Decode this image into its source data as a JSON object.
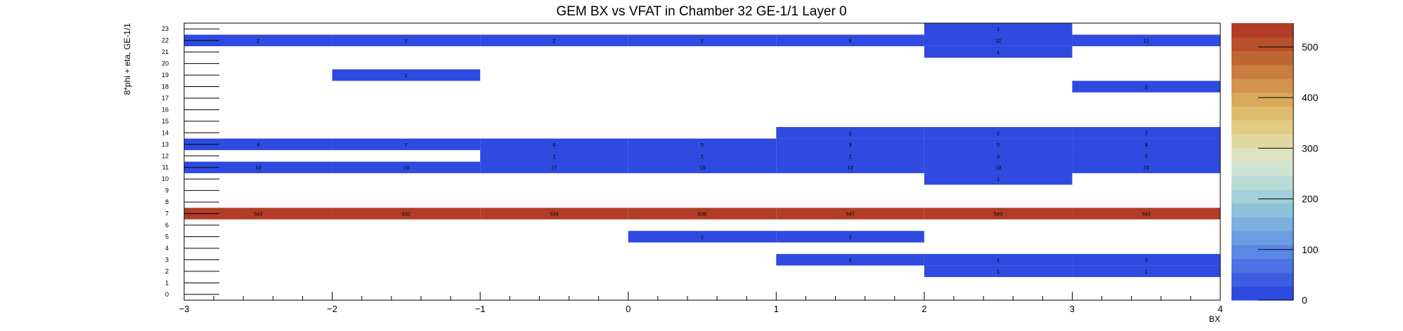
{
  "chart_data": {
    "type": "heatmap",
    "title": "GEM BX vs VFAT in Chamber 32 GE-1/1 Layer 0",
    "xlabel": "BX",
    "ylabel": "8*phi + eta, GE-1/1",
    "xlim": [
      -3,
      4
    ],
    "ylim": [
      -0.5,
      23.5
    ],
    "x_ticks": [
      "−3",
      "−2",
      "−1",
      "0",
      "1",
      "2",
      "3",
      "4"
    ],
    "y_ticks": [
      "0",
      "1",
      "2",
      "3",
      "4",
      "5",
      "6",
      "7",
      "8",
      "9",
      "10",
      "11",
      "12",
      "13",
      "14",
      "15",
      "16",
      "17",
      "18",
      "19",
      "20",
      "21",
      "22",
      "23"
    ],
    "x_bin_centers": [
      -2.5,
      -1.5,
      -0.5,
      0.5,
      1.5,
      2.5,
      3.5
    ],
    "zlim": [
      0,
      547
    ],
    "z_ticks": [
      0,
      100,
      200,
      300,
      400,
      500
    ],
    "colorscale": [
      "#2f4ae0",
      "#3d5ee2",
      "#4c72e3",
      "#5b88e4",
      "#6b9de2",
      "#7cb0dd",
      "#8ec1da",
      "#a3cfd8",
      "#b9dbd6",
      "#cfe3d2",
      "#dde2c0",
      "#e2d9a2",
      "#e2cc84",
      "#dfbc6c",
      "#d9a95a",
      "#d2944c",
      "#c97d40",
      "#bf6635",
      "#b74f2c",
      "#b23c26"
    ],
    "cells": [
      {
        "x": 2.5,
        "y": 23,
        "v": 1
      },
      {
        "x": -2.5,
        "y": 22,
        "v": 2
      },
      {
        "x": -1.5,
        "y": 22,
        "v": 2
      },
      {
        "x": -0.5,
        "y": 22,
        "v": 2
      },
      {
        "x": 0.5,
        "y": 22,
        "v": 2
      },
      {
        "x": 1.5,
        "y": 22,
        "v": 6
      },
      {
        "x": 2.5,
        "y": 22,
        "v": 12
      },
      {
        "x": 3.5,
        "y": 22,
        "v": 12
      },
      {
        "x": 2.5,
        "y": 21,
        "v": 1
      },
      {
        "x": -1.5,
        "y": 19,
        "v": 1
      },
      {
        "x": 3.5,
        "y": 18,
        "v": 2
      },
      {
        "x": 1.5,
        "y": 14,
        "v": 1
      },
      {
        "x": 2.5,
        "y": 14,
        "v": 2
      },
      {
        "x": 3.5,
        "y": 14,
        "v": 7
      },
      {
        "x": -2.5,
        "y": 13,
        "v": 4
      },
      {
        "x": -1.5,
        "y": 13,
        "v": 7
      },
      {
        "x": -0.5,
        "y": 13,
        "v": 6
      },
      {
        "x": 0.5,
        "y": 13,
        "v": 5
      },
      {
        "x": 1.5,
        "y": 13,
        "v": 3
      },
      {
        "x": 2.5,
        "y": 13,
        "v": 5
      },
      {
        "x": 3.5,
        "y": 13,
        "v": 8
      },
      {
        "x": -0.5,
        "y": 12,
        "v": 1
      },
      {
        "x": 0.5,
        "y": 12,
        "v": 1
      },
      {
        "x": 1.5,
        "y": 12,
        "v": 1
      },
      {
        "x": 2.5,
        "y": 12,
        "v": 3
      },
      {
        "x": 3.5,
        "y": 12,
        "v": 5
      },
      {
        "x": -2.5,
        "y": 11,
        "v": 13
      },
      {
        "x": -1.5,
        "y": 11,
        "v": 19
      },
      {
        "x": -0.5,
        "y": 11,
        "v": 27
      },
      {
        "x": 0.5,
        "y": 11,
        "v": 13
      },
      {
        "x": 1.5,
        "y": 11,
        "v": 13
      },
      {
        "x": 2.5,
        "y": 11,
        "v": 19
      },
      {
        "x": 3.5,
        "y": 11,
        "v": 23
      },
      {
        "x": 2.5,
        "y": 10,
        "v": 1
      },
      {
        "x": -2.5,
        "y": 7,
        "v": 543
      },
      {
        "x": -1.5,
        "y": 7,
        "v": 532
      },
      {
        "x": -0.5,
        "y": 7,
        "v": 534
      },
      {
        "x": 0.5,
        "y": 7,
        "v": 536
      },
      {
        "x": 1.5,
        "y": 7,
        "v": 547
      },
      {
        "x": 2.5,
        "y": 7,
        "v": 543
      },
      {
        "x": 3.5,
        "y": 7,
        "v": 543
      },
      {
        "x": 0.5,
        "y": 5,
        "v": 1
      },
      {
        "x": 1.5,
        "y": 5,
        "v": 1
      },
      {
        "x": 1.5,
        "y": 3,
        "v": 1
      },
      {
        "x": 2.5,
        "y": 3,
        "v": 1
      },
      {
        "x": 3.5,
        "y": 3,
        "v": 2
      },
      {
        "x": 2.5,
        "y": 2,
        "v": 1
      },
      {
        "x": 3.5,
        "y": 2,
        "v": 1
      }
    ]
  }
}
